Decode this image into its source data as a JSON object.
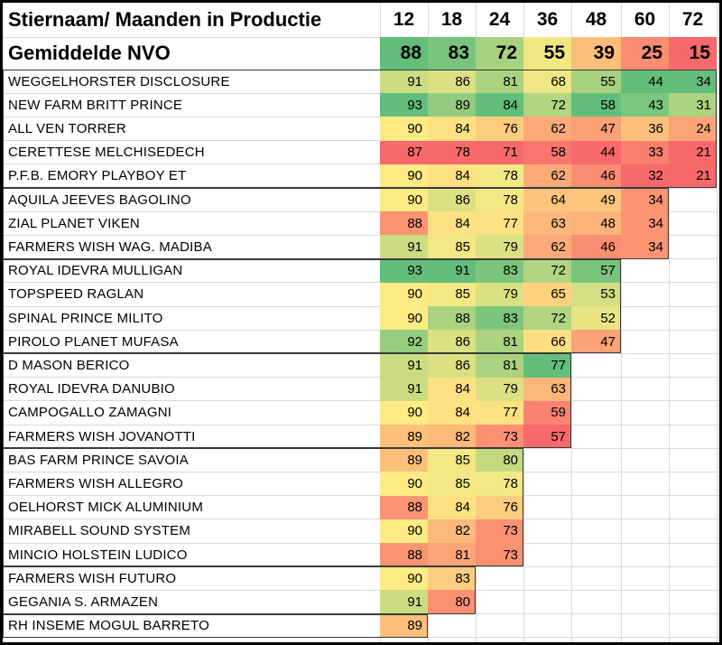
{
  "header": {
    "title": "Stiernaam/ Maanden in Productie",
    "months": [
      "12",
      "18",
      "24",
      "36",
      "48",
      "60",
      "72"
    ]
  },
  "average": {
    "label": "Gemiddelde NVO",
    "values": [
      88,
      83,
      72,
      55,
      39,
      25,
      15
    ]
  },
  "color_scale": {
    "low": "#f8696b",
    "mid": "#ffeb84",
    "high": "#63be7b"
  },
  "chart_data": {
    "type": "heatmap",
    "x_title": "Maanden in Productie",
    "y_title": "Stiernaam",
    "columns": [
      12,
      18,
      24,
      36,
      48,
      60,
      72
    ],
    "average_row": {
      "label": "Gemiddelde NVO",
      "values": [
        88,
        83,
        72,
        55,
        39,
        25,
        15
      ]
    },
    "groups": [
      {
        "rows": [
          {
            "name": "WEGGELHORSTER DISCLOSURE",
            "values": [
              91,
              86,
              81,
              68,
              55,
              44,
              34
            ]
          },
          {
            "name": "NEW FARM BRITT PRINCE",
            "values": [
              93,
              89,
              84,
              72,
              58,
              43,
              31
            ]
          },
          {
            "name": "ALL VEN TORRER",
            "values": [
              90,
              84,
              76,
              62,
              47,
              36,
              24
            ]
          },
          {
            "name": "CERETTESE MELCHISEDECH",
            "values": [
              87,
              78,
              71,
              58,
              44,
              33,
              21
            ]
          },
          {
            "name": "P.F.B. EMORY PLAYBOY ET",
            "values": [
              90,
              84,
              78,
              62,
              46,
              32,
              21
            ]
          }
        ]
      },
      {
        "rows": [
          {
            "name": "AQUILA JEEVES BAGOLINO",
            "values": [
              90,
              86,
              78,
              64,
              49,
              34
            ]
          },
          {
            "name": "ZIAL PLANET VIKEN",
            "values": [
              88,
              84,
              77,
              63,
              48,
              34
            ]
          },
          {
            "name": "FARMERS WISH WAG. MADIBA",
            "values": [
              91,
              85,
              79,
              62,
              46,
              34
            ]
          }
        ]
      },
      {
        "rows": [
          {
            "name": "ROYAL IDEVRA MULLIGAN",
            "values": [
              93,
              91,
              83,
              72,
              57
            ]
          },
          {
            "name": "TOPSPEED RAGLAN",
            "values": [
              90,
              85,
              79,
              65,
              53
            ]
          },
          {
            "name": "SPINAL PRINCE MILITO",
            "values": [
              90,
              88,
              83,
              72,
              52
            ]
          },
          {
            "name": "PIROLO PLANET MUFASA",
            "values": [
              92,
              86,
              81,
              66,
              47
            ]
          }
        ]
      },
      {
        "rows": [
          {
            "name": "D MASON BERICO",
            "values": [
              91,
              86,
              81,
              77
            ]
          },
          {
            "name": "ROYAL IDEVRA DANUBIO",
            "values": [
              91,
              84,
              79,
              63
            ]
          },
          {
            "name": "CAMPOGALLO ZAMAGNI",
            "values": [
              90,
              84,
              77,
              59
            ]
          },
          {
            "name": "FARMERS WISH JOVANOTTI",
            "values": [
              89,
              82,
              73,
              57
            ]
          }
        ]
      },
      {
        "rows": [
          {
            "name": "BAS FARM PRINCE SAVOIA",
            "values": [
              89,
              85,
              80
            ]
          },
          {
            "name": "FARMERS WISH ALLEGRO",
            "values": [
              90,
              85,
              78
            ]
          },
          {
            "name": "OELHORST MICK ALUMINIUM",
            "values": [
              88,
              84,
              76
            ]
          },
          {
            "name": "MIRABELL SOUND SYSTEM",
            "values": [
              90,
              82,
              73
            ]
          },
          {
            "name": "MINCIO HOLSTEIN LUDICO",
            "values": [
              88,
              81,
              73
            ]
          }
        ]
      },
      {
        "rows": [
          {
            "name": "FARMERS WISH FUTURO",
            "values": [
              90,
              83
            ]
          },
          {
            "name": "GEGANIA S. ARMAZEN",
            "values": [
              91,
              80
            ]
          }
        ]
      },
      {
        "rows": [
          {
            "name": "RH INSEME MOGUL BARRETO",
            "values": [
              89
            ]
          }
        ]
      }
    ]
  }
}
